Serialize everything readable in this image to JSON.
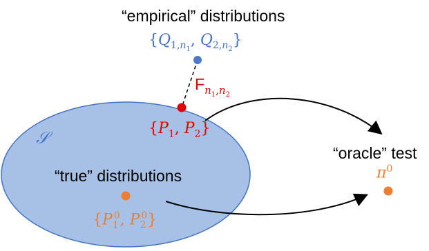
{
  "colors": {
    "ellipse_fill": "#a7c1e6",
    "ellipse_stroke": "#4472c4",
    "blue_text": "#4472c4",
    "blue_dot": "#4f7ac7",
    "red": "#e00000",
    "orange": "#ed7d31",
    "black": "#000000"
  },
  "empirical": {
    "title": "“empirical” distributions",
    "set_label": "{Q1,n1, Q2,n2}"
  },
  "distance": {
    "label": "Fn1,n2"
  },
  "population": {
    "set_name": "𝒮",
    "set_label": "{P1, P2}"
  },
  "true_dist": {
    "title": "“true” distributions",
    "set_label": "{P10, P20}"
  },
  "oracle": {
    "title": "“oracle” test",
    "symbol": "π0"
  }
}
